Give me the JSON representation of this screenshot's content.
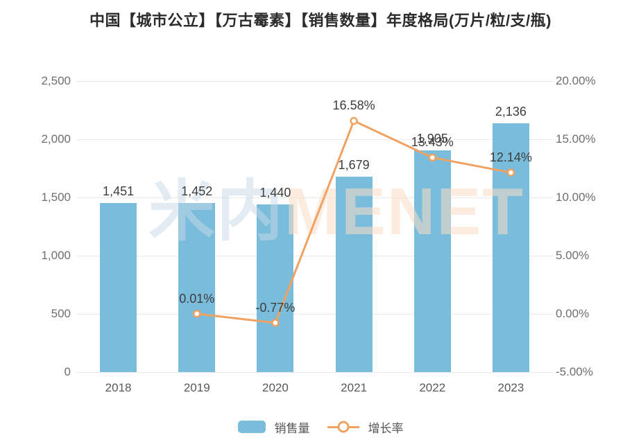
{
  "title": "中国【城市公立】【万古霉素】【销售数量】年度格局(万片/粒/支/瓶)",
  "watermark": {
    "cn": "米内",
    "en": "MENET"
  },
  "legend": {
    "bar_label": "销售量",
    "line_label": "增长率"
  },
  "colors": {
    "bar": "#7ABCDB",
    "line": "#EFA261",
    "grid": "#EAEAEA",
    "axis_text": "#6E6E6E",
    "data_label_text": "#3D3D3D",
    "title_text": "#2B2B2B"
  },
  "chart_data": {
    "type": "bar",
    "title": "中国【城市公立】【万古霉素】【销售数量】年度格局(万片/粒/支/瓶)",
    "categories": [
      "2018",
      "2019",
      "2020",
      "2021",
      "2022",
      "2023"
    ],
    "series": [
      {
        "name": "销售量",
        "type": "bar",
        "axis": "left",
        "values": [
          1451,
          1452,
          1440,
          1679,
          1905,
          2136
        ],
        "labels": [
          "1,451",
          "1,452",
          "1,440",
          "1,679",
          "1,905",
          "2,136"
        ]
      },
      {
        "name": "增长率",
        "type": "line",
        "axis": "right",
        "x": [
          "2019",
          "2020",
          "2021",
          "2022",
          "2023"
        ],
        "values": [
          0.01,
          -0.77,
          16.58,
          13.43,
          12.14
        ],
        "labels": [
          "0.01%",
          "-0.77%",
          "16.58%",
          "13.43%",
          "12.14%"
        ]
      }
    ],
    "left_axis": {
      "min": 0,
      "max": 2500,
      "ticks": [
        "2,500",
        "2,000",
        "1,500",
        "1,000",
        "500",
        "0"
      ]
    },
    "right_axis": {
      "min": -5,
      "max": 20,
      "ticks": [
        "20.00%",
        "15.00%",
        "10.00%",
        "5.00%",
        "0.00%",
        "-5.00%"
      ]
    },
    "grid": true,
    "legend_position": "bottom",
    "xlabel": "",
    "ylabel": ""
  }
}
